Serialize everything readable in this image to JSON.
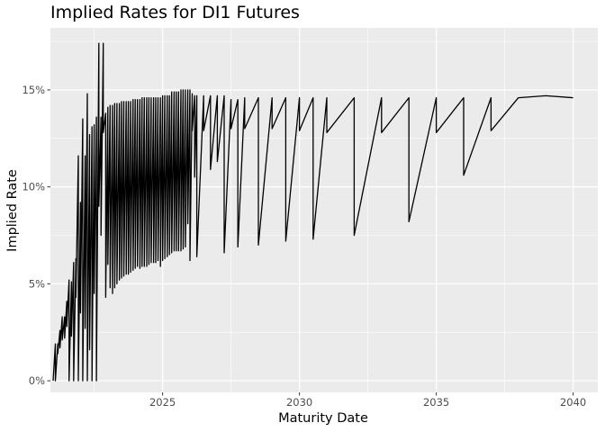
{
  "chart_data": {
    "type": "line",
    "title": "Implied Rates for DI1 Futures",
    "xlabel": "Maturity Date",
    "ylabel": "Implied Rate",
    "xlim": [
      2020.9,
      2040.9
    ],
    "ylim": [
      -0.006,
      0.182
    ],
    "x_ticks": [
      {
        "value": 2025,
        "label": "2025"
      },
      {
        "value": 2030,
        "label": "2030"
      },
      {
        "value": 2035,
        "label": "2035"
      },
      {
        "value": 2040,
        "label": "2040"
      }
    ],
    "y_ticks": [
      {
        "value": 0.0,
        "label": "0%"
      },
      {
        "value": 0.05,
        "label": "5%"
      },
      {
        "value": 0.1,
        "label": "10%"
      },
      {
        "value": 0.15,
        "label": "15%"
      }
    ],
    "grid": true,
    "background": "#ebebeb",
    "line_color": "#000000",
    "series": [
      {
        "x": [
          2021.0,
          2021.08,
          2021.08,
          2021.17,
          2021.17,
          2021.25,
          2021.25,
          2021.33,
          2021.33,
          2021.42,
          2021.42,
          2021.5,
          2021.5,
          2021.58,
          2021.58,
          2021.67,
          2021.67,
          2021.75,
          2021.75,
          2021.83,
          2021.83,
          2021.92,
          2021.92,
          2022.0,
          2022.0,
          2022.08,
          2022.08,
          2022.17,
          2022.17,
          2022.25,
          2022.25,
          2022.33,
          2022.33,
          2022.42,
          2022.42,
          2022.5,
          2022.5,
          2022.58,
          2022.58,
          2022.67,
          2022.67,
          2022.75,
          2022.75,
          2022.83,
          2022.83,
          2022.92,
          2022.92,
          2023.0,
          2023.0,
          2023.08,
          2023.08,
          2023.17,
          2023.17,
          2023.25,
          2023.25,
          2023.33,
          2023.33,
          2023.42,
          2023.42,
          2023.5,
          2023.5,
          2023.58,
          2023.58,
          2023.67,
          2023.67,
          2023.75,
          2023.75,
          2023.83,
          2023.83,
          2023.92,
          2023.92,
          2024.0,
          2024.0,
          2024.08,
          2024.08,
          2024.17,
          2024.17,
          2024.25,
          2024.25,
          2024.33,
          2024.33,
          2024.42,
          2024.42,
          2024.5,
          2024.5,
          2024.58,
          2024.58,
          2024.67,
          2024.67,
          2024.75,
          2024.75,
          2024.83,
          2024.83,
          2024.92,
          2024.92,
          2025.0,
          2025.0,
          2025.08,
          2025.08,
          2025.17,
          2025.17,
          2025.25,
          2025.25,
          2025.33,
          2025.33,
          2025.42,
          2025.42,
          2025.5,
          2025.5,
          2025.58,
          2025.58,
          2025.67,
          2025.67,
          2025.75,
          2025.75,
          2025.83,
          2025.83,
          2025.92,
          2025.92,
          2026.0,
          2026.0,
          2026.08,
          2026.08,
          2026.17,
          2026.17,
          2026.25,
          2026.25,
          2026.5,
          2026.5,
          2026.75,
          2026.75,
          2027.0,
          2027.0,
          2027.25,
          2027.25,
          2027.5,
          2027.5,
          2027.75,
          2027.75,
          2028.0,
          2028.0,
          2028.5,
          2028.5,
          2029.0,
          2029.0,
          2029.5,
          2029.5,
          2030.0,
          2030.0,
          2030.5,
          2030.5,
          2031.0,
          2031.0,
          2032.0,
          2032.0,
          2033.0,
          2033.0,
          2034.0,
          2034.0,
          2035.0,
          2035.0,
          2036.0,
          2036.0,
          2037.0,
          2037.0,
          2038.0,
          2039.0,
          2040.0
        ],
        "y": [
          0.0,
          0.019,
          0.0,
          0.019,
          0.014,
          0.026,
          0.017,
          0.033,
          0.021,
          0.033,
          0.022,
          0.041,
          0.028,
          0.052,
          0.0,
          0.051,
          0.023,
          0.061,
          0.0,
          0.063,
          0.043,
          0.116,
          0.0,
          0.092,
          0.035,
          0.135,
          0.0,
          0.116,
          0.027,
          0.148,
          0.0,
          0.127,
          0.016,
          0.131,
          0.0,
          0.132,
          0.045,
          0.136,
          0.0,
          0.174,
          0.09,
          0.136,
          0.075,
          0.174,
          0.128,
          0.138,
          0.043,
          0.141,
          0.06,
          0.142,
          0.048,
          0.142,
          0.045,
          0.143,
          0.048,
          0.143,
          0.05,
          0.143,
          0.052,
          0.144,
          0.053,
          0.144,
          0.054,
          0.144,
          0.055,
          0.144,
          0.055,
          0.144,
          0.056,
          0.145,
          0.057,
          0.145,
          0.058,
          0.145,
          0.059,
          0.145,
          0.058,
          0.146,
          0.059,
          0.146,
          0.059,
          0.146,
          0.059,
          0.146,
          0.06,
          0.146,
          0.061,
          0.146,
          0.061,
          0.146,
          0.061,
          0.146,
          0.062,
          0.146,
          0.059,
          0.147,
          0.062,
          0.147,
          0.063,
          0.147,
          0.064,
          0.147,
          0.065,
          0.149,
          0.066,
          0.149,
          0.067,
          0.149,
          0.067,
          0.149,
          0.067,
          0.15,
          0.067,
          0.15,
          0.068,
          0.15,
          0.069,
          0.15,
          0.081,
          0.15,
          0.062,
          0.148,
          0.129,
          0.147,
          0.105,
          0.147,
          0.064,
          0.147,
          0.129,
          0.147,
          0.109,
          0.147,
          0.113,
          0.147,
          0.066,
          0.145,
          0.13,
          0.145,
          0.069,
          0.146,
          0.13,
          0.146,
          0.07,
          0.146,
          0.13,
          0.146,
          0.072,
          0.146,
          0.129,
          0.146,
          0.073,
          0.146,
          0.128,
          0.146,
          0.075,
          0.146,
          0.128,
          0.146,
          0.082,
          0.146,
          0.128,
          0.146,
          0.106,
          0.146,
          0.129,
          0.146,
          0.147,
          0.146
        ]
      }
    ]
  }
}
